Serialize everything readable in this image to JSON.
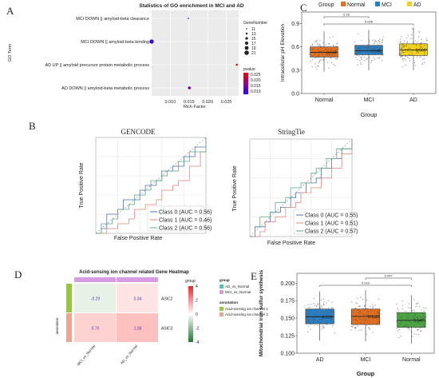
{
  "panel_letters": [
    "A",
    "B",
    "C",
    "D",
    "E"
  ],
  "chart_data": [
    {
      "id": "A",
      "type": "scatter",
      "title": "Statistics of GO enrichment in MCI and AD",
      "xlabel": "Rich Factor",
      "ylabel": "GO Term",
      "categories": [
        "MCI DOWN || amyloid-beta clearance",
        "MCI DOWN || amyloid-beta binding",
        "AD UP || amyloid precursor protein metabolic process",
        "AD DOWN || amyloid-beta metabolic process"
      ],
      "points": [
        {
          "term": "MCI DOWN || amyloid-beta clearance",
          "rich_factor": 0.0148,
          "gene_number": 11,
          "pvalue": 0.012
        },
        {
          "term": "MCI DOWN || amyloid-beta binding",
          "rich_factor": 0.005,
          "gene_number": 19,
          "pvalue": 0.012
        },
        {
          "term": "AD UP || amyloid precursor protein metabolic process",
          "rich_factor": 0.0278,
          "gene_number": 13,
          "pvalue": 0.024
        },
        {
          "term": "AD DOWN || amyloid-beta metabolic process",
          "rich_factor": 0.0151,
          "gene_number": 15,
          "pvalue": 0.016
        }
      ],
      "xticks": [
        "0.010",
        "0.015",
        "0.020",
        "0.025"
      ],
      "xlim": [
        0.005,
        0.0283
      ],
      "size_legend": {
        "title": "GeneNumber",
        "values": [
          "11",
          "13",
          "15",
          "17",
          "19",
          "21"
        ]
      },
      "color_legend": {
        "title": "pvalue",
        "values": [
          "0.025",
          "0.020",
          "0.015",
          "0.010"
        ],
        "colors": [
          "#f20000",
          "#b4006c",
          "#7a00c4",
          "#2400ff"
        ]
      }
    },
    {
      "id": "B1",
      "type": "line",
      "title": "GENCODE",
      "xlabel": "False Positive Rate",
      "ylabel": "True Positive Rate",
      "xlim": [
        0,
        1
      ],
      "ylim": [
        0,
        1
      ],
      "series": [
        {
          "name": "Class 0 (AUC = 0.56)",
          "color": "#4c6fb0",
          "x": [
            0,
            0.05,
            0.1,
            0.1,
            0.2,
            0.25,
            0.3,
            0.4,
            0.45,
            0.55,
            0.6,
            0.7,
            0.8,
            0.9,
            1
          ],
          "y": [
            0,
            0.05,
            0.1,
            0.2,
            0.25,
            0.35,
            0.35,
            0.45,
            0.5,
            0.55,
            0.65,
            0.7,
            0.8,
            0.9,
            1
          ]
        },
        {
          "name": "Class 1 (AUC = 0.46)",
          "color": "#e4867a",
          "x": [
            0,
            0.1,
            0.2,
            0.3,
            0.35,
            0.45,
            0.55,
            0.6,
            0.7,
            0.75,
            0.85,
            0.95,
            1
          ],
          "y": [
            0,
            0.05,
            0.1,
            0.15,
            0.25,
            0.3,
            0.35,
            0.45,
            0.5,
            0.55,
            0.7,
            0.85,
            1
          ]
        },
        {
          "name": "Class 2 (AUC = 0.56)",
          "color": "#5fa87e",
          "x": [
            0,
            0.05,
            0.15,
            0.2,
            0.3,
            0.35,
            0.45,
            0.5,
            0.6,
            0.65,
            0.75,
            0.85,
            1
          ],
          "y": [
            0,
            0.1,
            0.15,
            0.25,
            0.3,
            0.4,
            0.45,
            0.55,
            0.6,
            0.65,
            0.75,
            0.85,
            1
          ]
        }
      ]
    },
    {
      "id": "B2",
      "type": "line",
      "title": "StringTie",
      "xlabel": "False Positive Rate",
      "ylabel": "True Positive Rate",
      "xlim": [
        0,
        1
      ],
      "ylim": [
        0,
        1
      ],
      "series": [
        {
          "name": "Class 0 (AUC = 0.55)",
          "color": "#4c6fb0",
          "x": [
            0,
            0.05,
            0.15,
            0.2,
            0.3,
            0.4,
            0.45,
            0.55,
            0.65,
            0.7,
            0.8,
            0.9,
            1
          ],
          "y": [
            0,
            0.1,
            0.15,
            0.25,
            0.3,
            0.4,
            0.45,
            0.55,
            0.6,
            0.7,
            0.8,
            0.9,
            1
          ]
        },
        {
          "name": "Class 1 (AUC = 0.51)",
          "color": "#e4867a",
          "x": [
            0,
            0.1,
            0.15,
            0.25,
            0.35,
            0.45,
            0.5,
            0.6,
            0.7,
            0.8,
            0.9,
            1
          ],
          "y": [
            0,
            0.05,
            0.15,
            0.2,
            0.3,
            0.35,
            0.45,
            0.5,
            0.6,
            0.7,
            0.85,
            1
          ]
        },
        {
          "name": "Class 2 (AUC = 0.57)",
          "color": "#5fa87e",
          "x": [
            0,
            0.05,
            0.1,
            0.2,
            0.25,
            0.35,
            0.4,
            0.5,
            0.6,
            0.65,
            0.75,
            0.85,
            1
          ],
          "y": [
            0,
            0.1,
            0.2,
            0.25,
            0.35,
            0.4,
            0.5,
            0.55,
            0.65,
            0.7,
            0.8,
            0.9,
            1
          ]
        }
      ]
    },
    {
      "id": "C",
      "type": "box",
      "legend_title": "Group",
      "legend": [
        "Normal",
        "MCI",
        "AD"
      ],
      "colors": [
        "#e36f1e",
        "#2b7fc1",
        "#f2d21b"
      ],
      "xlabel": "Group",
      "ylabel": "Intracellular pH Elevation",
      "categories": [
        "Normal",
        "MCI",
        "AD"
      ],
      "ylim": [
        0,
        1.05
      ],
      "yticks": [
        "0.0",
        "0.3",
        "0.6",
        "0.9"
      ],
      "boxes": [
        {
          "q1": 0.47,
          "median": 0.53,
          "q3": 0.6,
          "whisker_low": 0.28,
          "whisker_high": 0.8,
          "mean_label": "0.533"
        },
        {
          "q1": 0.5,
          "median": 0.55,
          "q3": 0.62,
          "whisker_low": 0.3,
          "whisker_high": 0.82,
          "mean_label": "0.549"
        },
        {
          "q1": 0.49,
          "median": 0.56,
          "q3": 0.64,
          "whisker_low": 0.3,
          "whisker_high": 0.85,
          "mean_label": "0.566"
        }
      ],
      "significance": [
        {
          "label": "0.18",
          "from": "Normal",
          "to": "MCI"
        },
        {
          "label": "0.026",
          "from": "Normal",
          "to": "AD"
        }
      ]
    },
    {
      "id": "D",
      "type": "heatmap",
      "title": "Acid-sensing ion channel related Gene Heatmap",
      "rows": [
        "ASIC2",
        "ASIC3"
      ],
      "columns": [
        "MCI_vs_Normal",
        "AD_vs_Normal"
      ],
      "values": [
        [
          -0.29,
          0.34
        ],
        [
          0.7,
          1.08
        ]
      ],
      "value_labels": [
        [
          "-0.29",
          "0.34"
        ],
        [
          "0.70",
          "1.08"
        ]
      ],
      "scale": {
        "title": "group",
        "ticks": [
          "4",
          "2",
          "0",
          "-2",
          "-4"
        ]
      },
      "group_legend": {
        "title": "group",
        "items": [
          "AD_vs_Normal",
          "MCI_vs_Normal"
        ],
        "colors": [
          "#41c9c1",
          "#d69be2"
        ]
      },
      "annotation_legend": {
        "title": "annotation",
        "items": [
          "Acid-sensing ion channel 2",
          "Acid-sensing ion channel 3"
        ],
        "colors": [
          "#8fcc2c",
          "#f3a38c"
        ]
      },
      "row_annotation_label": "annotation"
    },
    {
      "id": "E",
      "type": "box",
      "xlabel": "Group",
      "ylabel": "Mitochondrial iron sulfur synthesis",
      "categories": [
        "AD",
        "MCI",
        "Normal"
      ],
      "colors": [
        "#2b7fc1",
        "#e36f1e",
        "#4aa442"
      ],
      "ylim": [
        0.1,
        0.214
      ],
      "yticks": [
        "0.100",
        "0.125",
        "0.150",
        "0.175",
        "0.200"
      ],
      "boxes": [
        {
          "q1": 0.142,
          "median": 0.152,
          "q3": 0.163,
          "whisker_low": 0.118,
          "whisker_high": 0.188,
          "mean_label": "0.152"
        },
        {
          "q1": 0.141,
          "median": 0.1525,
          "q3": 0.163,
          "whisker_low": 0.117,
          "whisker_high": 0.19,
          "mean_label": "0.1525"
        },
        {
          "q1": 0.137,
          "median": 0.147,
          "q3": 0.158,
          "whisker_low": 0.114,
          "whisker_high": 0.183,
          "mean_label": "0.147"
        }
      ],
      "significance": [
        {
          "label": "0.047",
          "from": "MCI",
          "to": "Normal"
        },
        {
          "label": "0.022",
          "from": "AD",
          "to": "Normal"
        }
      ]
    }
  ]
}
